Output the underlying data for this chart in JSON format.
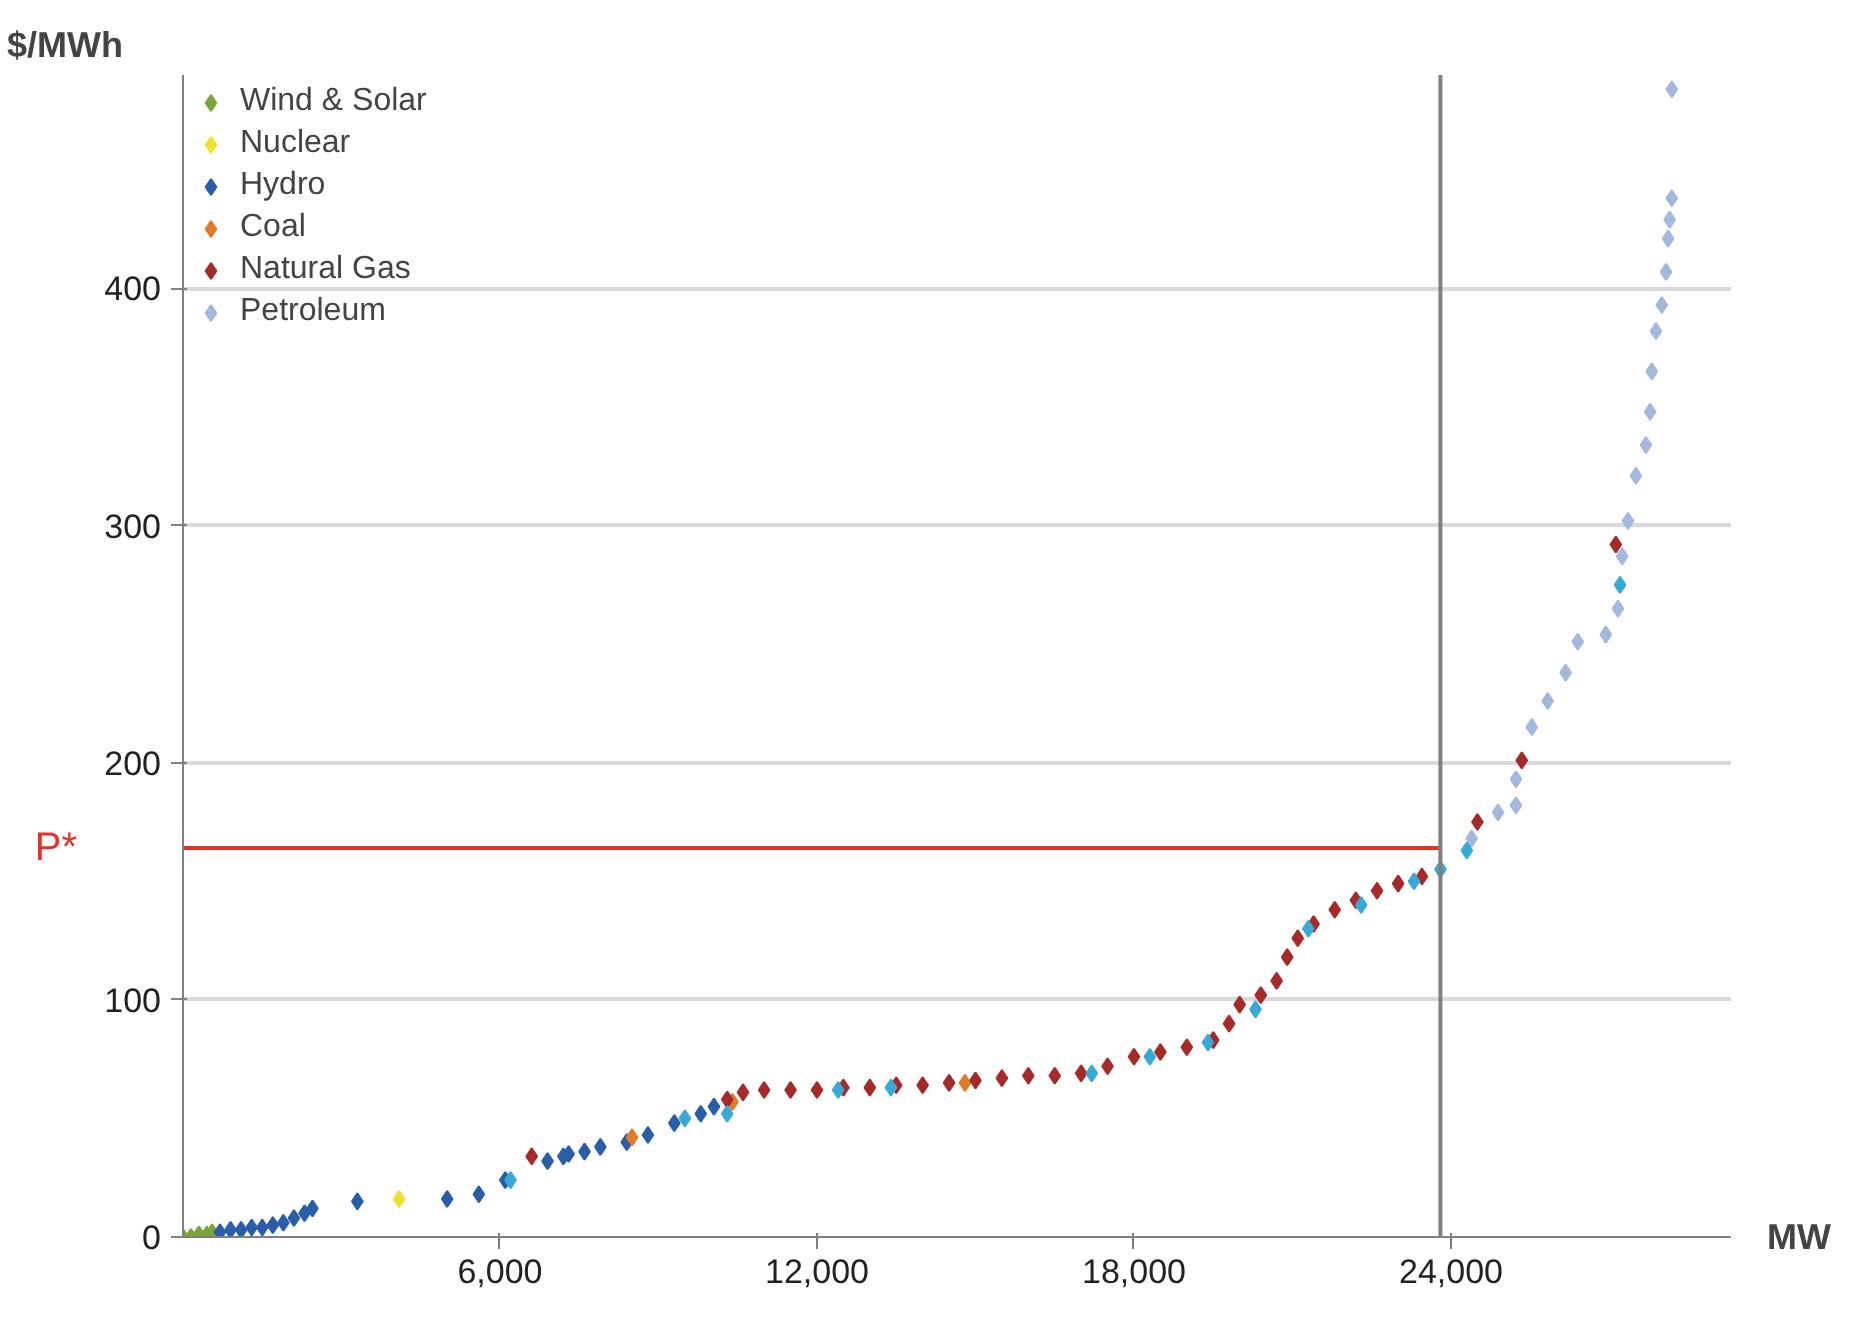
{
  "chart_data": {
    "type": "scatter",
    "xlabel": "MW",
    "ylabel": "$/MWh",
    "marker": "diamond",
    "grid": "y",
    "legend": "top left",
    "xlim": [
      0,
      29300
    ],
    "ylim": [
      0,
      490
    ],
    "xticks": [
      {
        "value": 6000,
        "label": "6,000"
      },
      {
        "value": 12000,
        "label": "12,000"
      },
      {
        "value": 18000,
        "label": "18,000"
      },
      {
        "value": 24000,
        "label": "24,000"
      }
    ],
    "yticks": [
      0,
      100,
      200,
      300,
      400
    ],
    "ref_lines": [
      {
        "axis": "y",
        "value": 164,
        "label": "P*",
        "color": "#e8302a"
      },
      {
        "axis": "x",
        "value": 23800,
        "color": "#808080"
      }
    ],
    "series": [
      {
        "name": "Wind & Solar",
        "color": "#7aa53a",
        "x": [
          0,
          150,
          300,
          450,
          550
        ],
        "values": [
          0,
          0,
          1,
          1,
          2
        ]
      },
      {
        "name": "Nuclear",
        "color": "#f0e130",
        "x": [
          4090
        ],
        "values": [
          16
        ]
      },
      {
        "name": "Hydro",
        "color": "#2b5ea8",
        "x": [
          700,
          900,
          1100,
          1300,
          1500,
          1700,
          1900,
          2100,
          2300,
          2450,
          3300,
          5000,
          5600,
          6100,
          6900,
          7200,
          7300,
          7600,
          7900,
          8400,
          8800,
          9300,
          9800,
          10050
        ],
        "values": [
          2,
          3,
          3,
          4,
          4,
          5,
          6,
          8,
          10,
          12,
          15,
          16,
          18,
          24,
          32,
          34,
          35,
          36,
          38,
          40,
          43,
          48,
          52,
          55
        ]
      },
      {
        "name": "Coal",
        "color": "#e07b28",
        "x": [
          8500,
          10400,
          14800
        ],
        "values": [
          42,
          57,
          65
        ]
      },
      {
        "name": "Natural Gas",
        "color": "#a52a2a",
        "x": [
          6600,
          10300,
          10600,
          11000,
          11500,
          12000,
          12500,
          13000,
          13500,
          14000,
          14500,
          15000,
          15500,
          16000,
          16500,
          17000,
          17500,
          18000,
          18500,
          19000,
          19500,
          19800,
          20000,
          20400,
          20700,
          20900,
          21100,
          21400,
          21800,
          22200,
          22600,
          23000,
          23450,
          24500,
          25340,
          27120
        ],
        "values": [
          34,
          58,
          61,
          62,
          62,
          62,
          63,
          63,
          64,
          64,
          65,
          66,
          67,
          68,
          68,
          69,
          72,
          76,
          78,
          80,
          83,
          90,
          98,
          102,
          108,
          118,
          126,
          132,
          138,
          142,
          146,
          149,
          152,
          175,
          201,
          292
        ]
      },
      {
        "name": "Petroleum",
        "color": "#a3b8dc",
        "x": [
          24390,
          24890,
          25230,
          25230,
          25530,
          25830,
          26170,
          26400,
          26930,
          27160,
          27240,
          27350,
          27500,
          27690,
          27770,
          27800,
          27880,
          27990,
          28070,
          28110,
          28140,
          28180,
          28180
        ],
        "values": [
          168,
          179,
          182,
          193,
          215,
          226,
          238,
          251,
          254,
          265,
          287,
          302,
          321,
          334,
          348,
          365,
          382,
          393,
          407,
          421,
          429,
          438,
          484
        ]
      },
      {
        "color": "#39a9d6",
        "x": [
          6200,
          9500,
          10300,
          12400,
          13400,
          17200,
          18300,
          19400,
          20300,
          21300,
          22300,
          23300,
          23800,
          24300,
          27200
        ],
        "values": [
          24,
          50,
          52,
          62,
          63,
          69,
          76,
          82,
          96,
          130,
          140,
          150,
          155,
          163,
          275
        ]
      }
    ]
  }
}
